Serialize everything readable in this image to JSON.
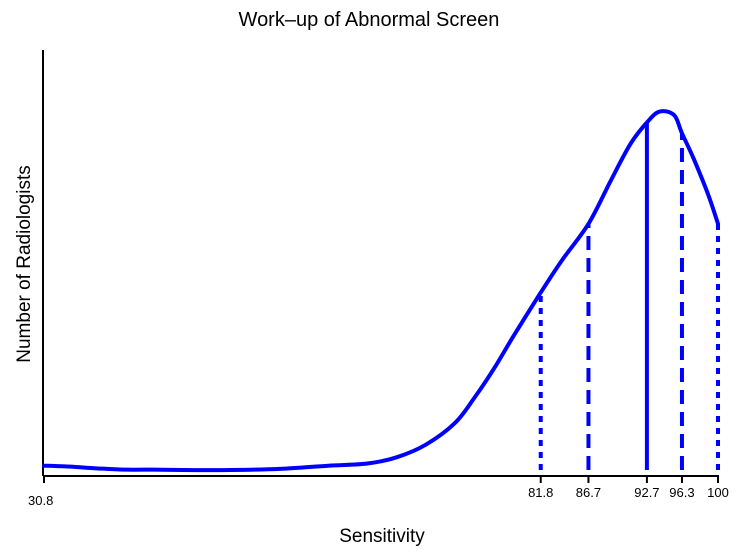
{
  "chart_data": {
    "type": "line",
    "title": "Work–up of Abnormal Screen",
    "xlabel": "Sensitivity",
    "ylabel": "Number of Radiologists",
    "xlim": [
      30.8,
      100
    ],
    "ylim": [
      0,
      1
    ],
    "series": [
      {
        "color": "#0000ff",
        "x": [
          30.8,
          33,
          36,
          39,
          42,
          45,
          50,
          55,
          60,
          64,
          67,
          70,
          73,
          75,
          77,
          79,
          81.8,
          84,
          86.7,
          89,
          91,
          92.7,
          94,
          95.5,
          96.3,
          97.5,
          99,
          100
        ],
        "y": [
          0.012,
          0.01,
          0.005,
          0.001,
          0.001,
          0.0,
          0.0,
          0.003,
          0.012,
          0.018,
          0.035,
          0.07,
          0.13,
          0.2,
          0.28,
          0.37,
          0.49,
          0.58,
          0.68,
          0.8,
          0.9,
          0.96,
          0.99,
          0.98,
          0.93,
          0.86,
          0.76,
          0.68
        ]
      }
    ],
    "reference_lines": [
      {
        "x": 81.8,
        "label": "81.8",
        "style": "dotted"
      },
      {
        "x": 86.7,
        "label": "86.7",
        "style": "dashed"
      },
      {
        "x": 92.7,
        "label": "92.7",
        "style": "solid"
      },
      {
        "x": 96.3,
        "label": "96.3",
        "style": "dashed"
      },
      {
        "x": 100,
        "label": "100",
        "style": "dotted"
      }
    ],
    "x_ticks": [
      {
        "x": 30.8,
        "label": "30.8"
      }
    ],
    "grid": false,
    "legend": "none"
  }
}
